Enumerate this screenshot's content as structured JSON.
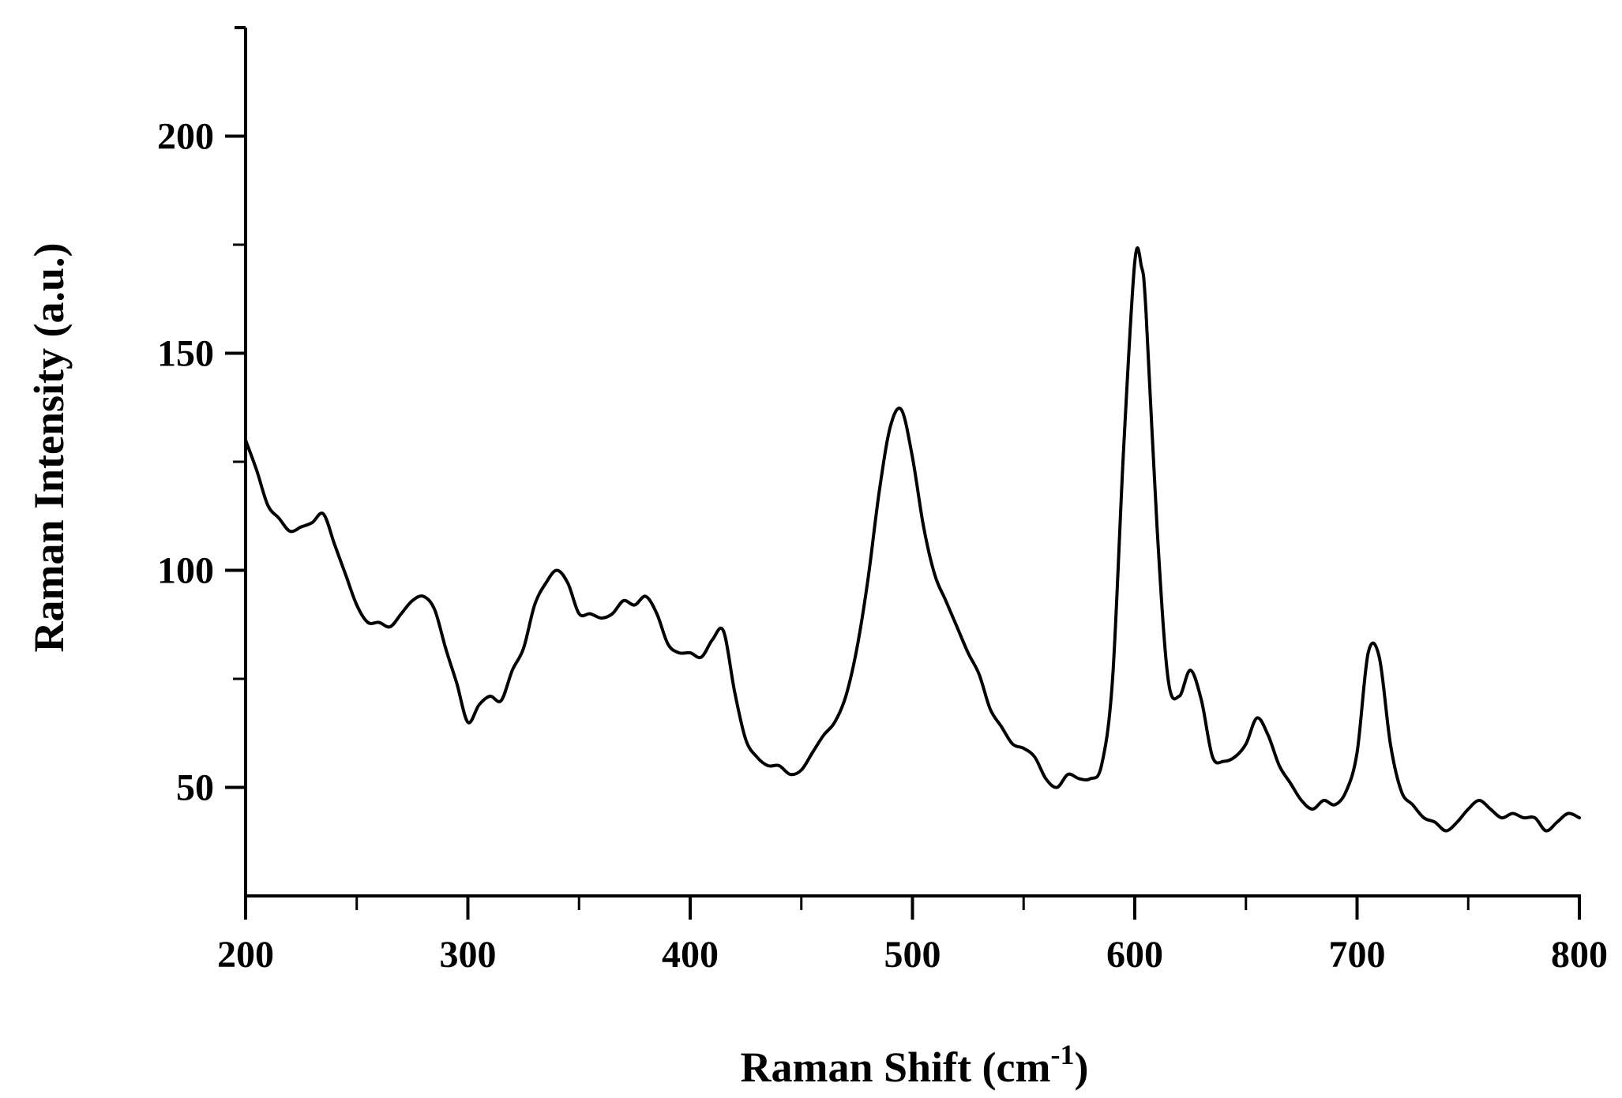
{
  "chart_data": {
    "type": "line",
    "title": "",
    "xlabel": "Raman Shift (cm",
    "xlabel_sup": "-1",
    "xlabel_suffix": ")",
    "ylabel": "Raman Intensity (a.u.)",
    "xlim": [
      200,
      800
    ],
    "ylim": [
      25,
      225
    ],
    "x_ticks": [
      200,
      300,
      400,
      500,
      600,
      700,
      800
    ],
    "x_tick_labels": [
      "200",
      "300",
      "400",
      "500",
      "600",
      "700",
      "800"
    ],
    "x_minor_ticks": [
      250,
      350,
      450,
      550,
      650,
      750
    ],
    "y_ticks": [
      50,
      100,
      150,
      200
    ],
    "y_tick_labels": [
      "50",
      "100",
      "150",
      "200"
    ],
    "y_minor_ticks": [
      75,
      125,
      175
    ],
    "grid": false,
    "line_color": "#000000",
    "series": [
      {
        "x": [
          200,
          205,
          210,
          215,
          220,
          225,
          230,
          235,
          240,
          245,
          250,
          255,
          260,
          265,
          270,
          275,
          280,
          285,
          290,
          295,
          300,
          305,
          310,
          315,
          320,
          325,
          330,
          335,
          340,
          345,
          350,
          355,
          360,
          365,
          370,
          375,
          380,
          385,
          390,
          395,
          400,
          405,
          410,
          415,
          420,
          425,
          430,
          435,
          440,
          445,
          450,
          455,
          460,
          465,
          470,
          475,
          480,
          485,
          490,
          495,
          500,
          505,
          510,
          515,
          520,
          525,
          530,
          535,
          540,
          545,
          550,
          555,
          560,
          565,
          570,
          575,
          580,
          585,
          590,
          595,
          600,
          603,
          605,
          610,
          615,
          620,
          625,
          630,
          635,
          640,
          645,
          650,
          655,
          660,
          665,
          670,
          675,
          680,
          685,
          690,
          695,
          700,
          705,
          710,
          715,
          720,
          725,
          730,
          735,
          740,
          745,
          750,
          755,
          760,
          765,
          770,
          775,
          780,
          785,
          790,
          795,
          800
        ],
        "y": [
          130,
          123,
          115,
          112,
          109,
          110,
          111,
          113,
          106,
          99,
          92,
          88,
          88,
          87,
          90,
          93,
          94,
          91,
          82,
          74,
          65,
          69,
          71,
          70,
          77,
          82,
          92,
          97,
          100,
          97,
          90,
          90,
          89,
          90,
          93,
          92,
          94,
          90,
          83,
          81,
          81,
          80,
          84,
          86,
          72,
          61,
          57,
          55,
          55,
          53,
          54,
          58,
          62,
          65,
          71,
          82,
          98,
          118,
          133,
          137,
          126,
          110,
          99,
          93,
          87,
          81,
          76,
          68,
          64,
          60,
          59,
          57,
          52,
          50,
          53,
          52,
          52,
          55,
          75,
          128,
          171,
          170,
          160,
          110,
          75,
          71,
          77,
          70,
          57,
          56,
          57,
          60,
          66,
          62,
          55,
          51,
          47,
          45,
          47,
          46,
          49,
          58,
          81,
          80,
          60,
          49,
          46,
          43,
          42,
          40,
          42,
          45,
          47,
          45,
          43,
          44,
          43,
          43,
          40,
          42,
          44,
          43
        ]
      }
    ]
  }
}
